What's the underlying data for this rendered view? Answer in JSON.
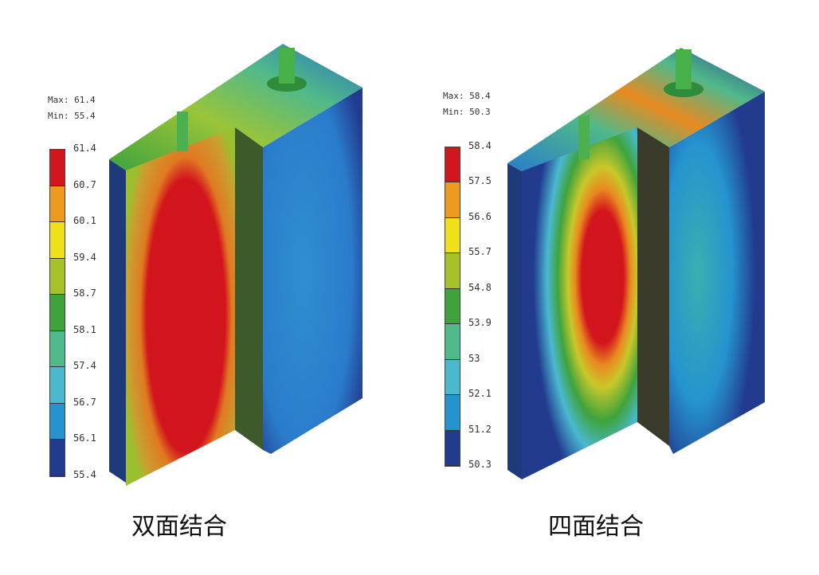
{
  "panels": [
    {
      "caption": "双面结合",
      "max_label": "Max: 61.4",
      "min_label": "Min: 55.4",
      "legend_ticks": [
        "61.4",
        "60.7",
        "60.1",
        "59.4",
        "58.7",
        "58.1",
        "57.4",
        "56.7",
        "56.1",
        "55.4"
      ]
    },
    {
      "caption": "四面结合",
      "max_label": "Max: 58.4",
      "min_label": "Min: 50.3",
      "legend_ticks": [
        "58.4",
        "57.5",
        "56.6",
        "55.7",
        "54.8",
        "53.9",
        "53",
        "52.1",
        "51.2",
        "50.3"
      ]
    }
  ],
  "colormap": [
    "#d2141c",
    "#ee9a1e",
    "#f1e11a",
    "#a6c22a",
    "#3fa33c",
    "#4fb98a",
    "#4ab9d0",
    "#2593cf",
    "#223b8f"
  ]
}
